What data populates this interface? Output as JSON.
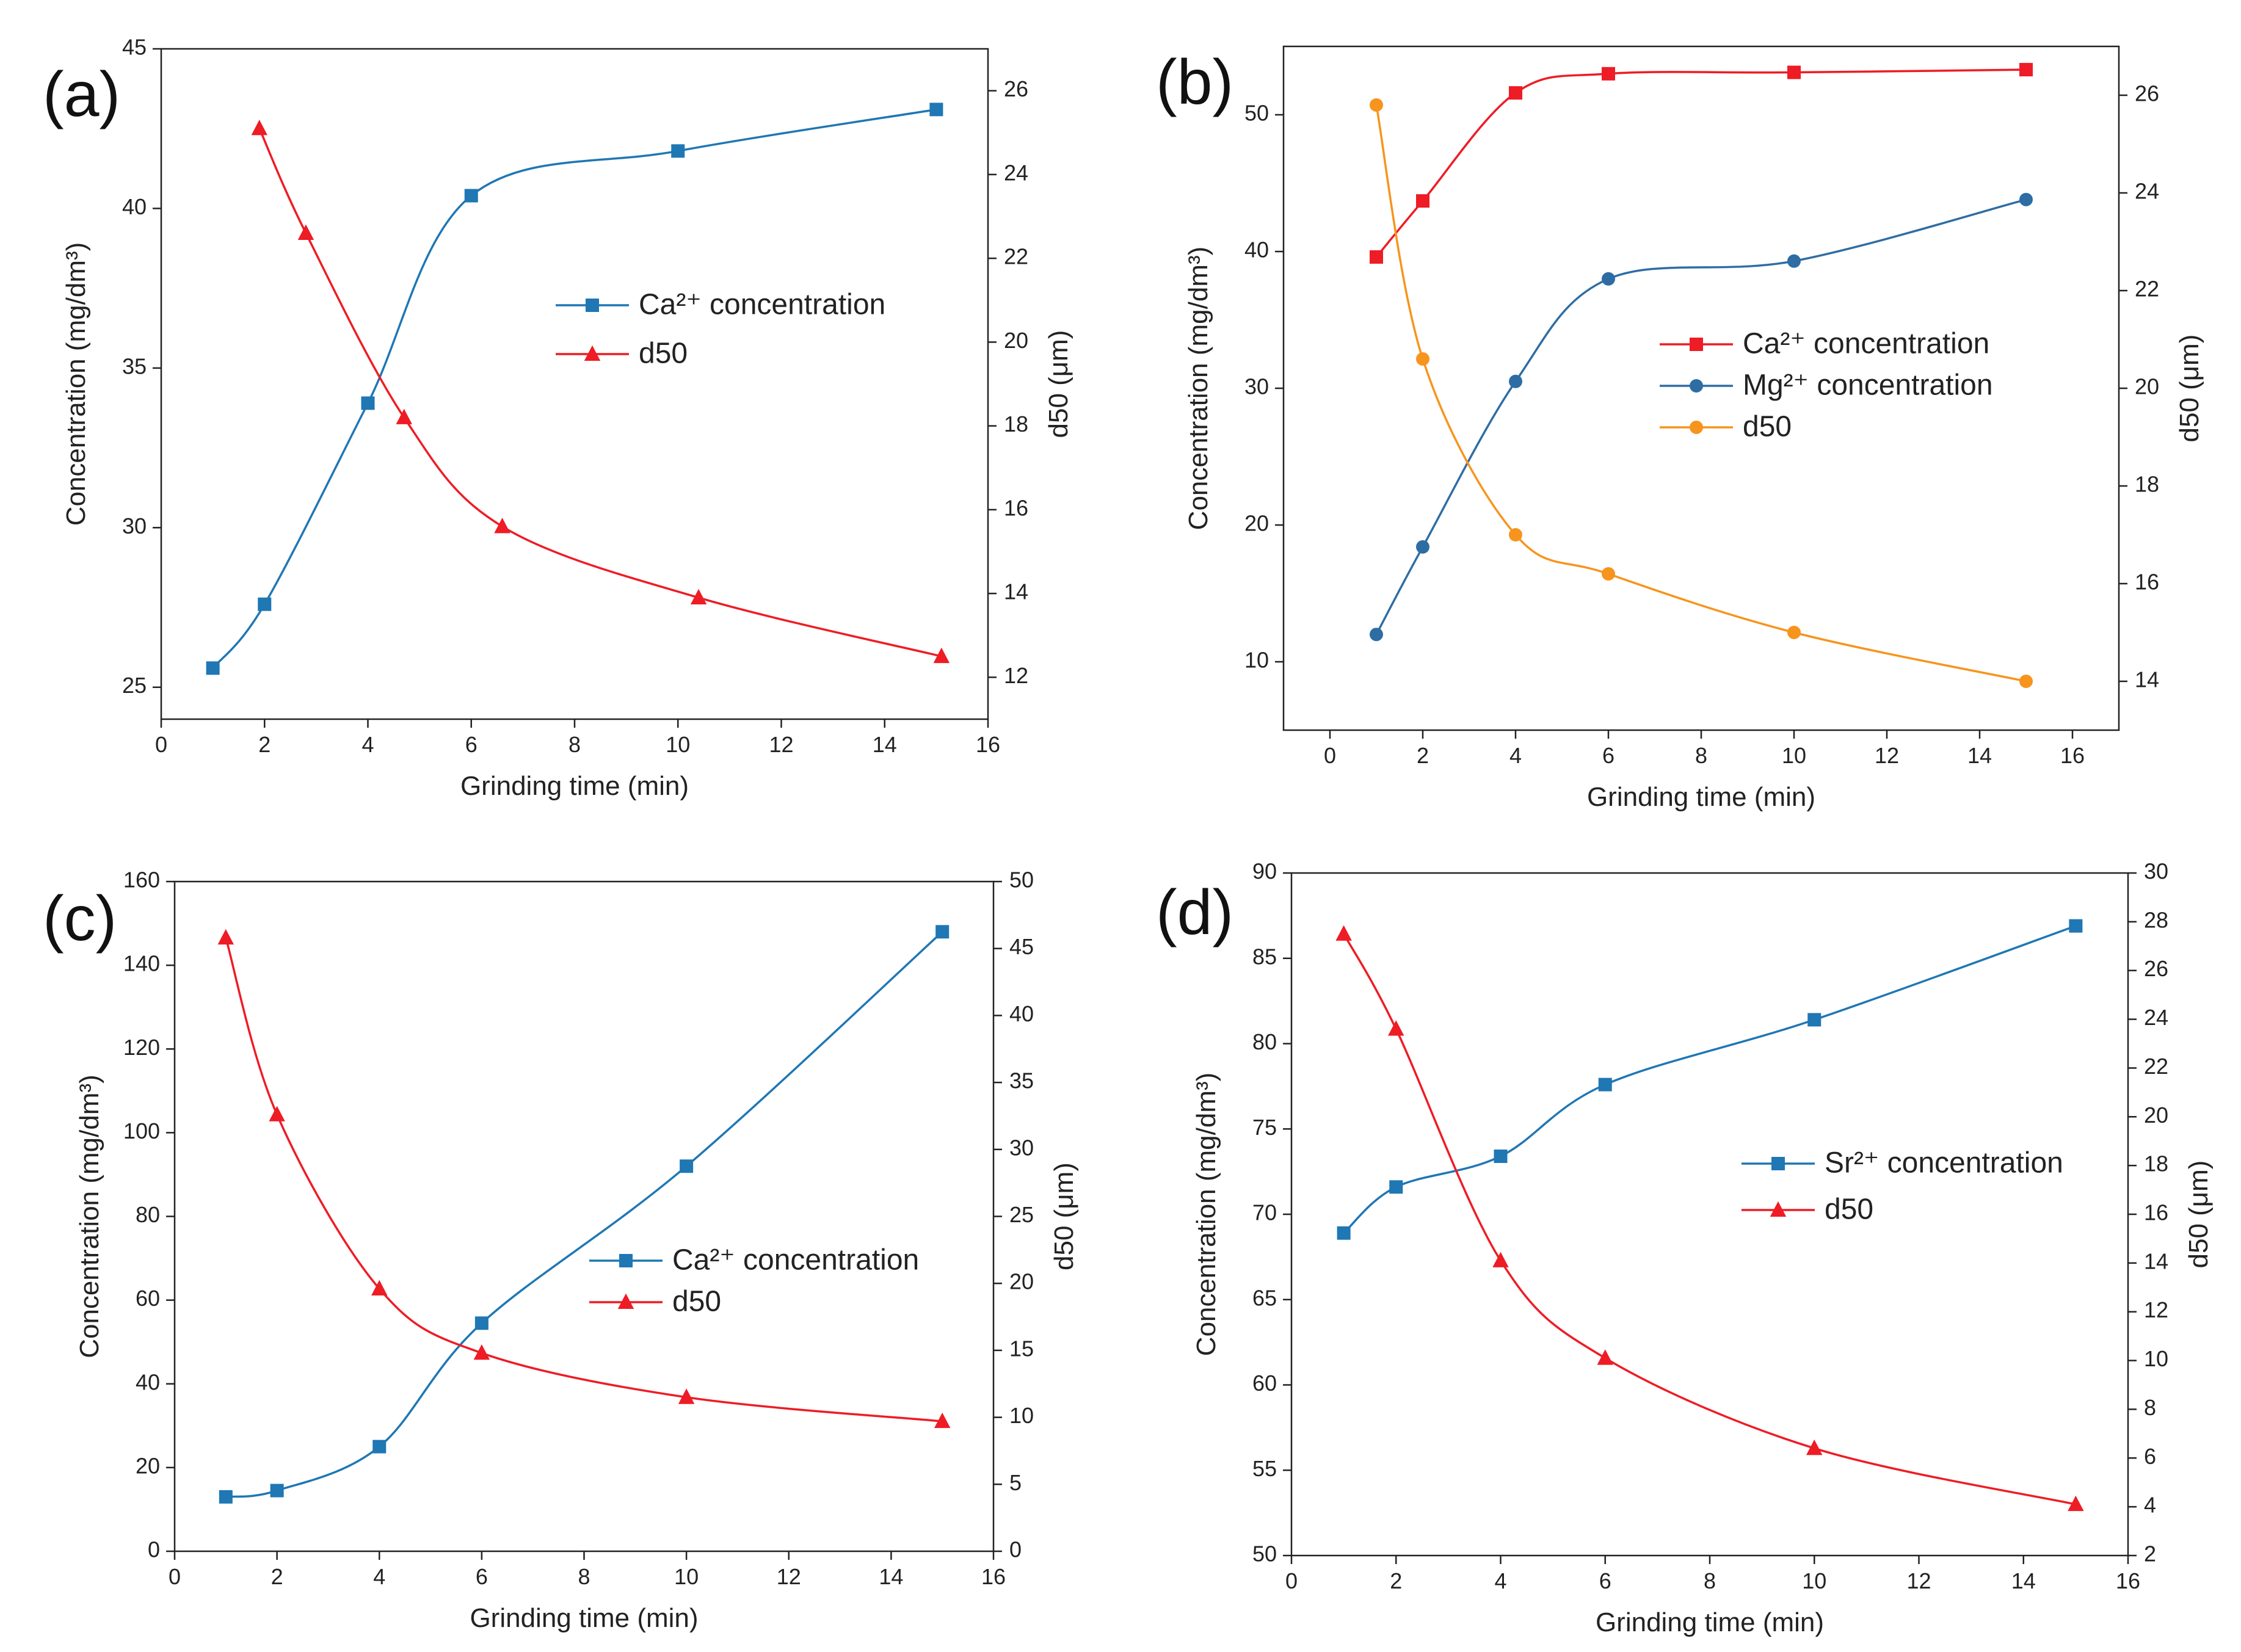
{
  "colors": {
    "red": "#ee1c25",
    "blue": "#1f77b4",
    "orange": "#f7941d",
    "axis": "#222222"
  },
  "chart_data": [
    {
      "id": "a",
      "type": "line",
      "panel_label": "(a)",
      "xlabel": "Grinding time (min)",
      "ylabel": "Concentration (mg/dm³)",
      "ylabel_right": "d50 (μm)",
      "xlim": [
        0,
        16
      ],
      "x_ticks": [
        0,
        2,
        4,
        6,
        8,
        10,
        12,
        14,
        16
      ],
      "ylim": [
        24,
        45
      ],
      "y_ticks": [
        25,
        30,
        35,
        40,
        45
      ],
      "ylim_right": [
        11,
        27
      ],
      "y_ticks_right": [
        12,
        14,
        16,
        18,
        20,
        22,
        24,
        26
      ],
      "legend_position": "center-right",
      "series": [
        {
          "name": "Ca²⁺ concentration",
          "axis": "left",
          "color": "#1f77b4",
          "marker": "square",
          "x": [
            1,
            2,
            4,
            6,
            10,
            15
          ],
          "y": [
            25.6,
            27.6,
            33.9,
            40.4,
            41.8,
            43.1
          ]
        },
        {
          "name": "d50",
          "axis": "right",
          "color": "#ee1c25",
          "marker": "triangle",
          "x": [
            1.9,
            2.8,
            4.7,
            6.6,
            10.4,
            15.1
          ],
          "y": [
            25.1,
            22.6,
            18.2,
            15.6,
            13.9,
            12.5
          ]
        }
      ]
    },
    {
      "id": "b",
      "type": "line",
      "panel_label": "(b)",
      "xlabel": "Grinding time (min)",
      "ylabel": "Concentration (mg/dm³)",
      "ylabel_right": "d50 (μm)",
      "xlim": [
        -1,
        17
      ],
      "x_ticks": [
        0,
        2,
        4,
        6,
        8,
        10,
        12,
        14,
        16
      ],
      "ylim": [
        5,
        55
      ],
      "y_ticks": [
        10,
        20,
        30,
        40,
        50
      ],
      "ylim_right": [
        13,
        27
      ],
      "y_ticks_right": [
        14,
        16,
        18,
        20,
        22,
        24,
        26
      ],
      "legend_position": "center-right",
      "series": [
        {
          "name": "Ca²⁺ concentration",
          "axis": "left",
          "color": "#ee1c25",
          "marker": "square",
          "x": [
            1,
            2,
            4,
            6,
            10,
            15
          ],
          "y": [
            39.6,
            43.7,
            51.6,
            53.0,
            53.1,
            53.3
          ]
        },
        {
          "name": "Mg²⁺ concentration",
          "axis": "left",
          "color": "#2e6da4",
          "marker": "circle",
          "x": [
            1,
            2,
            4,
            6,
            10,
            15
          ],
          "y": [
            12.0,
            18.4,
            30.5,
            38.0,
            39.3,
            43.8
          ]
        },
        {
          "name": "d50",
          "axis": "right",
          "color": "#f7941d",
          "marker": "circle",
          "x": [
            1,
            2,
            4,
            6,
            10,
            15
          ],
          "y": [
            25.8,
            20.6,
            17.0,
            16.2,
            15.0,
            14.0
          ]
        }
      ]
    },
    {
      "id": "c",
      "type": "line",
      "panel_label": "(c)",
      "xlabel": "Grinding time (min)",
      "ylabel": "Concentration (mg/dm³)",
      "ylabel_right": "d50 (μm)",
      "xlim": [
        0,
        16
      ],
      "x_ticks": [
        0,
        2,
        4,
        6,
        8,
        10,
        12,
        14,
        16
      ],
      "ylim": [
        0,
        160
      ],
      "y_ticks": [
        0,
        20,
        40,
        60,
        80,
        100,
        120,
        140,
        160
      ],
      "ylim_right": [
        0,
        50
      ],
      "y_ticks_right": [
        0,
        5,
        10,
        15,
        20,
        25,
        30,
        35,
        40,
        45,
        50
      ],
      "legend_position": "center-right",
      "series": [
        {
          "name": "Ca²⁺ concentration",
          "axis": "left",
          "color": "#1f77b4",
          "marker": "square",
          "x": [
            1,
            2,
            4,
            6,
            10,
            15
          ],
          "y": [
            13,
            14.5,
            25,
            54.5,
            92,
            148
          ]
        },
        {
          "name": "d50",
          "axis": "right",
          "color": "#ee1c25",
          "marker": "triangle",
          "x": [
            1,
            2,
            4,
            6,
            10,
            15
          ],
          "y": [
            45.8,
            32.6,
            19.6,
            14.8,
            11.5,
            9.7
          ]
        }
      ]
    },
    {
      "id": "d",
      "type": "line",
      "panel_label": "(d)",
      "xlabel": "Grinding time (min)",
      "ylabel": "Concentration (mg/dm³)",
      "ylabel_right": "d50 (μm)",
      "xlim": [
        0,
        16
      ],
      "x_ticks": [
        0,
        2,
        4,
        6,
        8,
        10,
        12,
        14,
        16
      ],
      "ylim": [
        50,
        90
      ],
      "y_ticks": [
        50,
        55,
        60,
        65,
        70,
        75,
        80,
        85,
        90
      ],
      "ylim_right": [
        2,
        30
      ],
      "y_ticks_right": [
        2,
        4,
        6,
        8,
        10,
        12,
        14,
        16,
        18,
        20,
        22,
        24,
        26,
        28,
        30
      ],
      "legend_position": "center-right",
      "series": [
        {
          "name": "Sr²⁺ concentration",
          "axis": "left",
          "color": "#1f77b4",
          "marker": "square",
          "x": [
            1,
            2,
            4,
            6,
            10,
            15
          ],
          "y": [
            68.9,
            71.6,
            73.4,
            77.6,
            81.4,
            86.9
          ]
        },
        {
          "name": "d50",
          "axis": "right",
          "color": "#ee1c25",
          "marker": "triangle",
          "x": [
            1,
            2,
            4,
            6,
            10,
            15
          ],
          "y": [
            27.5,
            23.6,
            14.1,
            10.1,
            6.4,
            4.1
          ]
        }
      ]
    }
  ]
}
